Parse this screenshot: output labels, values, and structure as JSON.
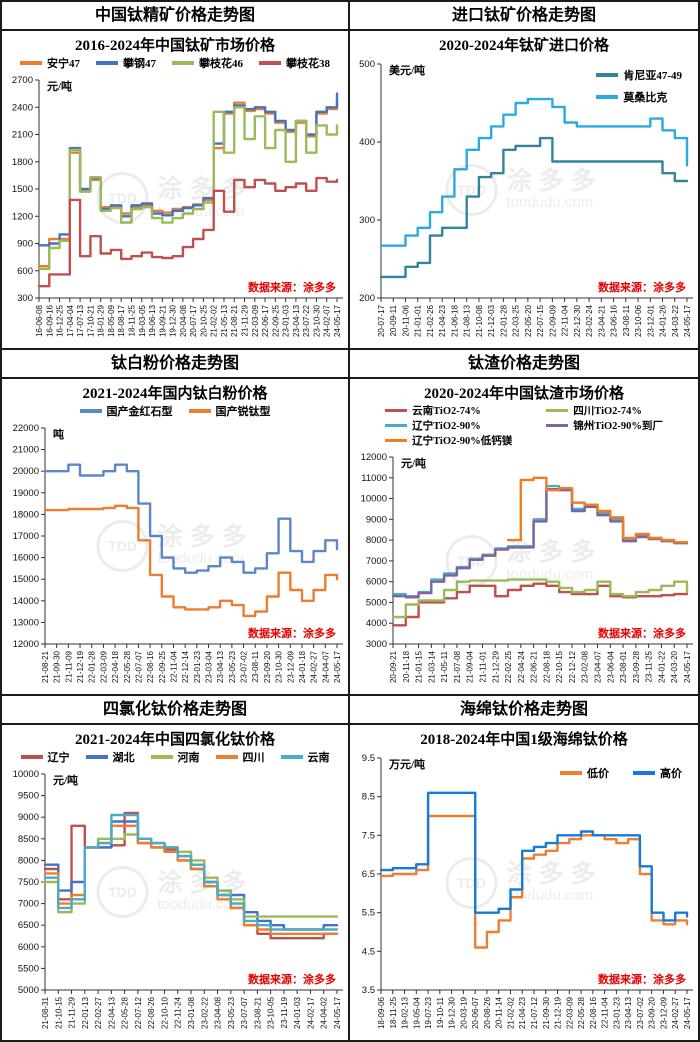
{
  "source_label": "数据来源：涂多多",
  "watermark": {
    "logo": "TDD",
    "name": "涂多多",
    "site": "toodudu.com"
  },
  "chart_data": [
    {
      "type": "line",
      "header": "中国钛精矿价格走势图",
      "title": "2016-2024年中国钛矿市场价格",
      "ylabel": "元/吨",
      "ylim": [
        300,
        2700
      ],
      "ystep": 300,
      "grid": false,
      "legend": "row",
      "legend_position": "top-center",
      "x": [
        "16-06-08",
        "16-09-16",
        "16-12-25",
        "17-04-04",
        "17-07-13",
        "17-10-21",
        "18-01-29",
        "18-05-09",
        "18-08-17",
        "18-11-25",
        "19-03-05",
        "19-06-13",
        "19-09-21",
        "19-12-30",
        "20-04-08",
        "20-07-17",
        "20-10-25",
        "21-02-02",
        "21-05-13",
        "21-08-21",
        "21-11-29",
        "22-03-09",
        "22-06-17",
        "22-09-25",
        "23-01-03",
        "23-04-13",
        "23-07-22",
        "23-10-30",
        "24-02-07",
        "24-05-17"
      ],
      "series": [
        {
          "name": "安宁47",
          "color": "#ED7D31",
          "values": [
            650,
            950,
            950,
            1900,
            1480,
            1600,
            1300,
            1310,
            1230,
            1300,
            1320,
            1260,
            1240,
            1280,
            1300,
            1330,
            1380,
            1950,
            2330,
            2450,
            2360,
            2380,
            2330,
            2230,
            2130,
            2230,
            2080,
            2330,
            2380,
            2470
          ]
        },
        {
          "name": "攀钢47",
          "color": "#4472C4",
          "values": [
            880,
            900,
            1000,
            1950,
            1500,
            1620,
            1280,
            1320,
            1200,
            1320,
            1340,
            1230,
            1210,
            1260,
            1290,
            1320,
            1400,
            2000,
            2350,
            2420,
            2380,
            2400,
            2350,
            2250,
            2150,
            2250,
            2100,
            2350,
            2400,
            2550
          ]
        },
        {
          "name": "攀枝花46",
          "color": "#9BBB59",
          "values": [
            620,
            850,
            930,
            1930,
            1470,
            1630,
            1260,
            1290,
            1130,
            1280,
            1300,
            1180,
            1130,
            1180,
            1230,
            1280,
            1350,
            2350,
            1900,
            2400,
            2050,
            2300,
            1950,
            2150,
            1800,
            2250,
            1900,
            2200,
            2100,
            2200
          ]
        },
        {
          "name": "攀枝花38",
          "color": "#C0504D",
          "values": [
            430,
            560,
            560,
            1380,
            760,
            980,
            790,
            830,
            730,
            760,
            800,
            750,
            740,
            760,
            860,
            950,
            1050,
            1480,
            1250,
            1600,
            1520,
            1600,
            1560,
            1480,
            1520,
            1560,
            1480,
            1620,
            1580,
            1600
          ]
        }
      ]
    },
    {
      "type": "line",
      "header": "进口钛矿价格走势图",
      "title": "2020-2024年钛矿进口价格",
      "ylabel": "美元/吨",
      "ylim": [
        200,
        500
      ],
      "ystep": 100,
      "grid": false,
      "legend": "overlay-col",
      "legend_position": "inside-top-right",
      "x": [
        "20-07-17",
        "20-09-11",
        "20-11-06",
        "21-01-01",
        "21-02-26",
        "21-04-23",
        "21-06-18",
        "21-08-13",
        "21-10-08",
        "21-12-03",
        "22-01-28",
        "22-03-25",
        "22-05-20",
        "22-07-15",
        "22-09-09",
        "22-11-04",
        "22-12-30",
        "23-02-24",
        "23-04-21",
        "23-06-16",
        "23-08-11",
        "23-10-06",
        "23-12-01",
        "24-01-26",
        "24-03-22",
        "24-05-17"
      ],
      "series": [
        {
          "name": "肯尼亚47-49",
          "color": "#31849B",
          "values": [
            227,
            227,
            240,
            245,
            280,
            290,
            290,
            330,
            355,
            360,
            390,
            395,
            395,
            405,
            375,
            375,
            375,
            375,
            375,
            375,
            375,
            375,
            375,
            360,
            350,
            350
          ]
        },
        {
          "name": "莫桑比克",
          "color": "#29ABE2",
          "values": [
            267,
            267,
            280,
            290,
            310,
            330,
            365,
            390,
            405,
            420,
            435,
            450,
            455,
            455,
            445,
            425,
            420,
            420,
            420,
            420,
            420,
            420,
            430,
            415,
            405,
            370
          ]
        }
      ]
    },
    {
      "type": "line",
      "header": "钛白粉价格走势图",
      "title": "2021-2024年国内钛白粉价格",
      "ylabel": "吨",
      "ylim": [
        12000,
        22000
      ],
      "ystep": 1000,
      "grid": false,
      "legend": "row",
      "legend_position": "top-center",
      "x": [
        "21-08-21",
        "21-09-30",
        "21-11-09",
        "21-12-19",
        "22-01-28",
        "22-03-09",
        "22-04-18",
        "22-05-28",
        "22-07-07",
        "22-08-16",
        "22-09-25",
        "22-11-04",
        "22-12-14",
        "23-01-23",
        "23-03-04",
        "23-04-13",
        "23-05-23",
        "23-07-02",
        "23-08-11",
        "23-09-20",
        "23-10-30",
        "23-12-09",
        "24-01-18",
        "24-02-27",
        "24-04-07",
        "24-05-17"
      ],
      "series": [
        {
          "name": "国产金红石型",
          "color": "#5B87C9",
          "values": [
            20000,
            20000,
            20300,
            19800,
            19800,
            20000,
            20300,
            20000,
            18500,
            17000,
            16000,
            15500,
            15300,
            15400,
            15600,
            16000,
            15800,
            15300,
            15500,
            16200,
            17800,
            16300,
            15800,
            16300,
            16800,
            16400
          ]
        },
        {
          "name": "国产锐钛型",
          "color": "#ED7D31",
          "values": [
            18200,
            18200,
            18250,
            18250,
            18250,
            18300,
            18400,
            18300,
            16800,
            15200,
            14200,
            13700,
            13600,
            13600,
            13700,
            14000,
            13800,
            13300,
            13500,
            14200,
            15300,
            14500,
            14000,
            14500,
            15200,
            15000
          ]
        }
      ]
    },
    {
      "type": "line",
      "header": "钛渣价格走势图",
      "title": "2020-2024年中国钛渣市场价格",
      "ylabel": "元/吨",
      "ylim": [
        3000,
        12000
      ],
      "ystep": 1000,
      "grid": false,
      "legend": "grid2",
      "legend_position": "top-two-columns",
      "x": [
        "20-09-21",
        "20-11-18",
        "21-01-15",
        "21-03-14",
        "21-05-11",
        "21-07-08",
        "21-09-04",
        "21-11-01",
        "21-12-29",
        "22-02-25",
        "22-04-24",
        "22-06-21",
        "22-08-18",
        "22-10-15",
        "22-12-12",
        "23-02-08",
        "23-04-07",
        "23-06-04",
        "23-08-01",
        "23-09-28",
        "23-11-25",
        "24-01-22",
        "24-03-20",
        "24-05-17"
      ],
      "series": [
        {
          "name": "云南TiO2-74%",
          "color": "#C0504D",
          "values": [
            3900,
            4300,
            5000,
            5000,
            5200,
            5500,
            5800,
            5800,
            5300,
            5600,
            5800,
            5900,
            5800,
            5500,
            5400,
            5400,
            5800,
            5300,
            5250,
            5300,
            5300,
            5350,
            5400,
            5400
          ]
        },
        {
          "name": "四川TiO2-74%",
          "color": "#9BBB59",
          "values": [
            4300,
            4900,
            5100,
            5100,
            5600,
            6000,
            6050,
            6050,
            6050,
            6100,
            6100,
            6100,
            6000,
            5700,
            5500,
            5600,
            6000,
            5400,
            5300,
            5500,
            5600,
            5800,
            6000,
            5500
          ]
        },
        {
          "name": "辽宁TiO2-90%",
          "color": "#4BACC6",
          "values": [
            5400,
            5300,
            5500,
            6100,
            6400,
            6700,
            7100,
            7300,
            7600,
            7700,
            7700,
            9000,
            10600,
            10500,
            9500,
            9700,
            9300,
            9000,
            8000,
            8200,
            8100,
            8000,
            7900,
            7900
          ]
        },
        {
          "name": "锦州TiO2-90%到厂",
          "color": "#8064A2",
          "values": [
            5300,
            5250,
            5450,
            6000,
            6300,
            6650,
            7050,
            7250,
            7550,
            7650,
            7650,
            8900,
            10450,
            10400,
            9400,
            9600,
            9200,
            8900,
            7950,
            8150,
            8050,
            7950,
            7850,
            7850
          ]
        },
        {
          "name": "辽宁TiO2-90%低钙镁",
          "color": "#EE7E1F",
          "values": [
            null,
            null,
            null,
            null,
            null,
            null,
            null,
            null,
            null,
            8000,
            10900,
            11000,
            10400,
            10500,
            9800,
            9700,
            9400,
            9100,
            8100,
            8300,
            8100,
            8000,
            7900,
            7900
          ]
        }
      ]
    },
    {
      "type": "line",
      "header": "四氯化钛价格走势图",
      "title": "2021-2024年中国四氯化钛价格",
      "ylabel": "元/吨",
      "ylim": [
        5000,
        10000
      ],
      "ystep": 500,
      "grid": false,
      "legend": "row",
      "legend_position": "top-center",
      "x": [
        "21-08-31",
        "21-10-15",
        "21-11-29",
        "22-01-13",
        "22-02-27",
        "22-04-13",
        "22-05-28",
        "22-07-12",
        "22-08-26",
        "22-10-10",
        "22-11-24",
        "23-01-08",
        "23-02-22",
        "23-04-08",
        "23-05-23",
        "23-07-07",
        "23-08-21",
        "23-10-05",
        "23-11-19",
        "24-01-03",
        "24-02-17",
        "24-04-02",
        "24-05-17"
      ],
      "series": [
        {
          "name": "辽宁",
          "color": "#C0504D",
          "values": [
            7800,
            7100,
            8800,
            8300,
            8300,
            8350,
            9100,
            8400,
            8300,
            8250,
            8000,
            7800,
            7400,
            7200,
            6900,
            6500,
            6300,
            6200,
            6200,
            6200,
            6200,
            6300,
            6300
          ]
        },
        {
          "name": "湖北",
          "color": "#4472C4",
          "values": [
            7900,
            7300,
            7500,
            8300,
            8300,
            8900,
            8900,
            8500,
            8400,
            8300,
            8100,
            7900,
            7500,
            7300,
            7200,
            6800,
            6600,
            6500,
            6400,
            6400,
            6400,
            6500,
            6500
          ]
        },
        {
          "name": "河南",
          "color": "#9BBB59",
          "values": [
            7500,
            6800,
            7000,
            8300,
            8500,
            8500,
            8600,
            8500,
            8400,
            8300,
            8200,
            8000,
            7600,
            7300,
            7100,
            6700,
            6700,
            6700,
            6700,
            6700,
            6700,
            6700,
            6700
          ]
        },
        {
          "name": "四川",
          "color": "#ED7D31",
          "values": [
            7700,
            7000,
            7200,
            8300,
            8400,
            8800,
            8800,
            8400,
            8300,
            8200,
            8000,
            7800,
            7400,
            7100,
            6900,
            6500,
            6400,
            6300,
            6300,
            6300,
            6300,
            6300,
            6300
          ]
        },
        {
          "name": "云南",
          "color": "#4BACC6",
          "values": [
            7600,
            6900,
            7100,
            8300,
            8400,
            9050,
            9050,
            8500,
            8400,
            8300,
            8100,
            7900,
            7500,
            7200,
            7000,
            6600,
            6500,
            6400,
            6400,
            6400,
            6400,
            6400,
            6400
          ]
        }
      ]
    },
    {
      "type": "line",
      "header": "海绵钛价格走势图",
      "title": "2018-2024年中国1级海绵钛价格",
      "ylabel": "万元/吨",
      "ylim": [
        3.5,
        9.5
      ],
      "ystep": 1,
      "grid": false,
      "legend": "overlay-row",
      "legend_position": "inside-top-right",
      "x": [
        "18-09-06",
        "18-11-25",
        "19-02-13",
        "19-05-04",
        "19-07-23",
        "19-10-11",
        "19-12-30",
        "20-03-19",
        "20-06-07",
        "20-08-26",
        "20-11-14",
        "21-02-02",
        "21-04-23",
        "21-07-12",
        "21-09-30",
        "21-12-19",
        "22-03-09",
        "22-05-28",
        "22-08-16",
        "22-11-04",
        "23-01-23",
        "23-04-13",
        "23-07-02",
        "23-09-20",
        "23-12-09",
        "24-02-27",
        "24-05-17"
      ],
      "series": [
        {
          "name": "低价",
          "color": "#ED7D31",
          "values": [
            6.45,
            6.5,
            6.5,
            6.6,
            8.0,
            8.0,
            8.0,
            8.0,
            4.6,
            5.0,
            5.3,
            5.9,
            6.9,
            7.0,
            7.1,
            7.3,
            7.4,
            7.5,
            7.5,
            7.4,
            7.3,
            7.4,
            6.5,
            5.3,
            5.2,
            5.3,
            5.2
          ]
        },
        {
          "name": "高价",
          "color": "#157BD8",
          "values": [
            6.6,
            6.65,
            6.65,
            6.75,
            8.6,
            8.6,
            8.6,
            8.6,
            5.5,
            5.5,
            5.6,
            6.1,
            7.1,
            7.2,
            7.3,
            7.5,
            7.5,
            7.6,
            7.5,
            7.5,
            7.5,
            7.5,
            6.7,
            5.5,
            5.3,
            5.5,
            5.4
          ]
        }
      ]
    }
  ]
}
